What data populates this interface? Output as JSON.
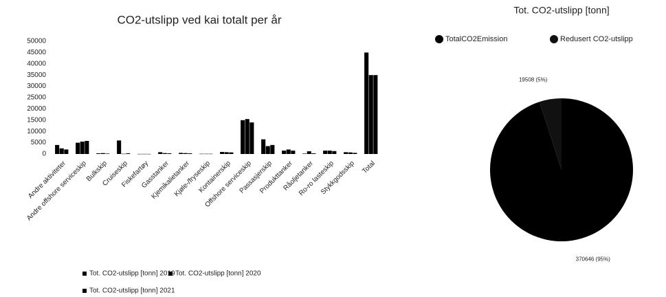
{
  "chart_data": [
    {
      "type": "bar",
      "title": "CO2-utslipp ved kai totalt per år",
      "categories": [
        "Andre aktiviteter",
        "Andre offshore serviceskip",
        "Bulkskip",
        "Cruiseskip",
        "Fiskefartøy",
        "Gasstanker",
        "Kjemikalietanker",
        "Kjøle-/fryseskip",
        "Kontainerskip",
        "Offshore serviceskip",
        "Passasjerskip",
        "Produkttanker",
        "Råoljetanker",
        "Ro-ro lasteskip",
        "Stykkgodsskip",
        "Total"
      ],
      "series": [
        {
          "name": "Tot. CO2-utslipp [tonn] 2019",
          "color": "#000000",
          "values": [
            4000,
            5000,
            300,
            6000,
            50,
            800,
            500,
            100,
            900,
            15000,
            6500,
            1500,
            200,
            1500,
            800,
            45000
          ]
        },
        {
          "name": "Tot. CO2-utslipp [tonn] 2020",
          "color": "#000000",
          "values": [
            2500,
            5500,
            400,
            100,
            50,
            400,
            400,
            100,
            800,
            15500,
            3500,
            2000,
            1200,
            1500,
            700,
            35000
          ]
        },
        {
          "name": "Tot. CO2-utslipp [tonn] 2021",
          "color": "#000000",
          "values": [
            2000,
            5800,
            200,
            300,
            50,
            300,
            300,
            100,
            700,
            14000,
            4000,
            1500,
            300,
            1300,
            500,
            35000
          ]
        }
      ],
      "ylim": [
        0,
        50000
      ],
      "yticks": [
        0,
        5000,
        10000,
        15000,
        20000,
        25000,
        30000,
        35000,
        40000,
        45000,
        50000
      ]
    },
    {
      "type": "pie",
      "title": "Tot. CO2-utslipp [tonn]",
      "categories": [
        "TotalCO2Emission",
        "Redusert CO2-utslipp"
      ],
      "values": [
        370646,
        19508
      ],
      "value_labels": [
        "370646 (95%)",
        "19508 (5%)"
      ],
      "colors": [
        "#000000",
        "#111111"
      ]
    }
  ]
}
